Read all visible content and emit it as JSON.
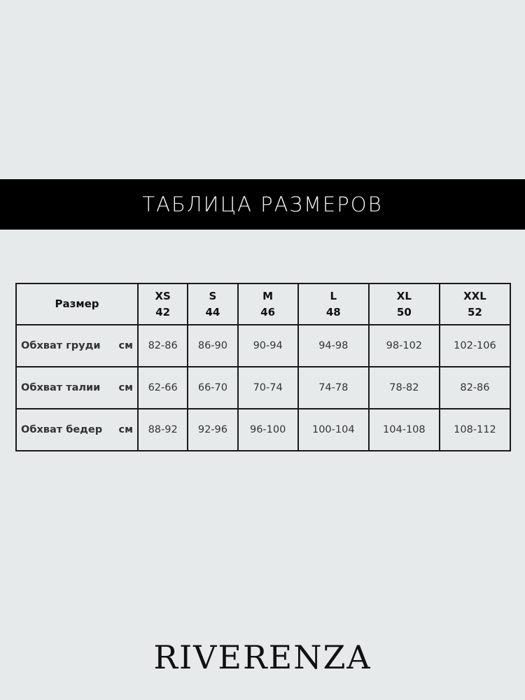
{
  "title": "ТАБЛИЦА РАЗМЕРОВ",
  "table": {
    "header_label": "Размер",
    "sizes": [
      {
        "letter": "XS",
        "number": "42"
      },
      {
        "letter": "S",
        "number": "44"
      },
      {
        "letter": "M",
        "number": "46"
      },
      {
        "letter": "L",
        "number": "48"
      },
      {
        "letter": "XL",
        "number": "50"
      },
      {
        "letter": "XXL",
        "number": "52"
      }
    ],
    "rows": [
      {
        "label": "Обхват груди",
        "unit": "см",
        "values": [
          "82-86",
          "86-90",
          "90-94",
          "94-98",
          "98-102",
          "102-106"
        ]
      },
      {
        "label": "Обхват талии",
        "unit": "см",
        "values": [
          "62-66",
          "66-70",
          "70-74",
          "74-78",
          "78-82",
          "82-86"
        ]
      },
      {
        "label": "Обхват бедер",
        "unit": "см",
        "values": [
          "88-92",
          "92-96",
          "96-100",
          "100-104",
          "104-108",
          "108-112"
        ]
      }
    ]
  },
  "brand": "RIVERENZA"
}
